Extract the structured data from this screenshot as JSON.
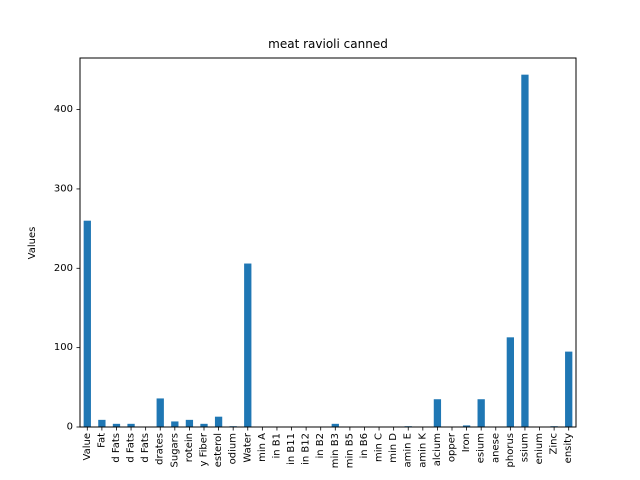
{
  "chart_data": {
    "type": "bar",
    "title": "meat ravioli canned",
    "xlabel": "",
    "ylabel": "Values",
    "ylim": [
      0,
      465
    ],
    "yticks": [
      0,
      100,
      200,
      300,
      400
    ],
    "grid": false,
    "legend": "none",
    "bar_color": "#1f77b4",
    "categories": [
      "Value",
      "Fat",
      "d Fats",
      "d Fats",
      "d Fats",
      "drates",
      "Sugars",
      "rotein",
      "y Fiber",
      "esterol",
      "odium",
      "Water",
      "min A",
      "in B1",
      "in B11",
      "in B12",
      "in B2",
      "min B3",
      "min B5",
      "in B6",
      "min C",
      "min D",
      "amin E",
      "amin K",
      "alcium",
      "opper",
      "Iron",
      "esium",
      "anese",
      "phorus",
      "ssium",
      "enium",
      "Zinc",
      "ensity"
    ],
    "values": [
      260,
      9,
      4,
      4,
      0,
      36,
      7,
      9,
      4,
      13,
      1,
      206,
      0,
      0,
      0,
      0,
      0,
      4,
      0,
      0,
      0,
      0,
      1,
      0,
      35,
      0,
      2,
      35,
      0,
      113,
      444,
      0,
      1,
      95
    ]
  }
}
